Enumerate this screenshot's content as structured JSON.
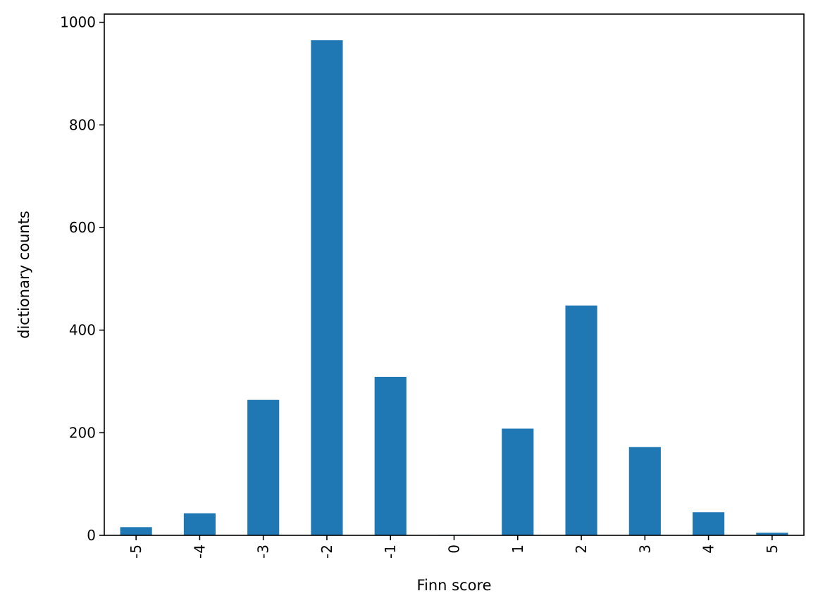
{
  "chart_data": {
    "type": "bar",
    "categories": [
      "-5",
      "-4",
      "-3",
      "-2",
      "-1",
      "0",
      "1",
      "2",
      "3",
      "4",
      "5"
    ],
    "values": [
      16,
      43,
      264,
      965,
      309,
      1,
      208,
      448,
      172,
      45,
      5
    ],
    "xlabel": "Finn score",
    "ylabel": "dictionary counts",
    "ylim": [
      0,
      1016
    ],
    "yticks": [
      "0",
      "200",
      "400",
      "600",
      "800",
      "1000"
    ],
    "bar_color": "#1f77b4",
    "grid": false,
    "legend": "none",
    "xtick_rotation": "vertical"
  }
}
